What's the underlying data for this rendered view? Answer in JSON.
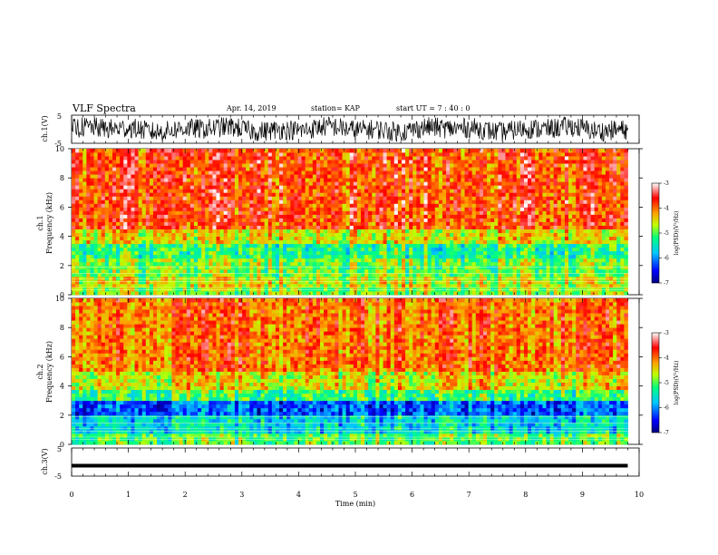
{
  "header": {
    "title": "VLF Spectra",
    "date": "Apr. 14, 2019",
    "station": "station= KAP",
    "start": "start  UT =   7 : 40 : 0"
  },
  "chart_data": [
    {
      "type": "line",
      "name": "ch1-waveform",
      "ylabel": "ch.1(V)",
      "ylim": [
        -5,
        5
      ],
      "yticks": [
        "5",
        "-5"
      ],
      "xlim": [
        0,
        10
      ],
      "waveform_level": [
        -2,
        2
      ]
    },
    {
      "type": "heatmap",
      "name": "ch1-spectrogram",
      "ylabel_top": "ch.1",
      "ylabel": "Frequency (kHz)",
      "yticks": [
        "0",
        "2",
        "4",
        "6",
        "8",
        "10"
      ],
      "ylim": [
        0,
        10
      ],
      "xlim": [
        0,
        9.8
      ],
      "colorbar": {
        "label": "log(PSD)(V²/Hz)",
        "ticks": [
          "-3",
          "-4",
          "-5",
          "-6",
          "-7"
        ],
        "range": [
          -7,
          -3
        ]
      },
      "bands": [
        {
          "f": [
            0,
            0.6
          ],
          "level": -4.8
        },
        {
          "f": [
            0.6,
            1.2
          ],
          "level": -4.6
        },
        {
          "f": [
            1.2,
            2.6
          ],
          "level": -4.9
        },
        {
          "f": [
            2.6,
            3.4
          ],
          "level": -5.2
        },
        {
          "f": [
            3.4,
            4.5
          ],
          "level": -4.5
        },
        {
          "f": [
            4.5,
            10
          ],
          "level": -3.8
        }
      ]
    },
    {
      "type": "heatmap",
      "name": "ch2-spectrogram",
      "ylabel_top": "ch.2",
      "ylabel": "Frequency (kHz)",
      "yticks": [
        "0",
        "2",
        "4",
        "6",
        "8",
        "10"
      ],
      "ylim": [
        0,
        10
      ],
      "xlim": [
        0,
        9.8
      ],
      "colorbar": {
        "label": "log(PSD)(V²/Hz)",
        "ticks": [
          "-3",
          "-4",
          "-5",
          "-6",
          "-7"
        ],
        "range": [
          -7,
          -3
        ]
      },
      "bands": [
        {
          "f": [
            0,
            0.7
          ],
          "level": -5.0
        },
        {
          "f": [
            0.7,
            1.9
          ],
          "level": -5.6
        },
        {
          "f": [
            1.9,
            2.9
          ],
          "level": -6.2
        },
        {
          "f": [
            2.9,
            3.8
          ],
          "level": -5.1
        },
        {
          "f": [
            3.8,
            5.0
          ],
          "level": -4.5
        },
        {
          "f": [
            5.0,
            10
          ],
          "level": -4.0
        }
      ]
    },
    {
      "type": "line",
      "name": "ch3-waveform",
      "ylabel": "ch.3(V)",
      "ylim": [
        -5,
        5
      ],
      "yticks": [
        "5",
        "-5"
      ],
      "xlim": [
        0,
        10
      ],
      "constant_value": -1.3
    }
  ],
  "xaxis": {
    "label": "Time  (min)",
    "ticks": [
      "0",
      "1",
      "2",
      "3",
      "4",
      "5",
      "6",
      "7",
      "8",
      "9",
      "10"
    ]
  },
  "colors": {
    "colormap": [
      "#000080",
      "#0000ff",
      "#00a0ff",
      "#00ffff",
      "#00ff80",
      "#80ff00",
      "#ffff00",
      "#ffa000",
      "#ff4000",
      "#ff0000",
      "#ffffff"
    ]
  }
}
